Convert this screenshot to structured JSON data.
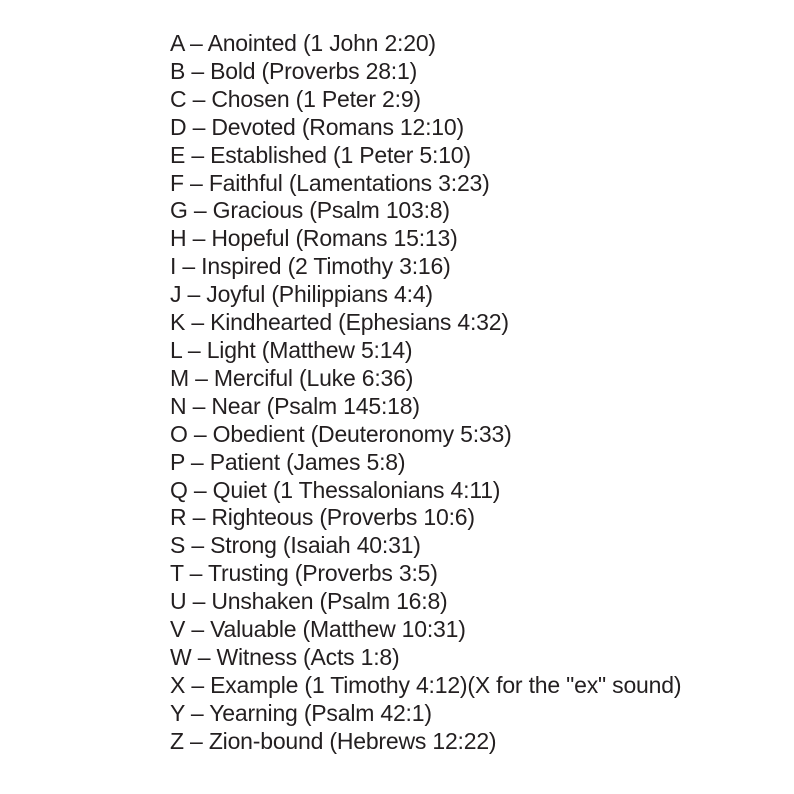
{
  "page": {
    "background_color": "#ffffff",
    "text_color": "#231f20"
  },
  "list": {
    "separator": "–",
    "items": [
      {
        "letter": "A",
        "word": "Anointed",
        "reference": "1 John 2:20",
        "note": ""
      },
      {
        "letter": "B",
        "word": "Bold",
        "reference": "Proverbs 28:1",
        "note": ""
      },
      {
        "letter": "C",
        "word": "Chosen",
        "reference": "1 Peter 2:9",
        "note": ""
      },
      {
        "letter": "D",
        "word": "Devoted",
        "reference": "Romans 12:10",
        "note": ""
      },
      {
        "letter": "E",
        "word": "Established",
        "reference": "1 Peter 5:10",
        "note": ""
      },
      {
        "letter": "F",
        "word": "Faithful",
        "reference": "Lamentations 3:23",
        "note": ""
      },
      {
        "letter": "G",
        "word": "Gracious",
        "reference": "Psalm 103:8",
        "note": ""
      },
      {
        "letter": "H",
        "word": "Hopeful",
        "reference": "Romans 15:13",
        "note": ""
      },
      {
        "letter": "I",
        "word": "Inspired",
        "reference": "2 Timothy 3:16",
        "note": ""
      },
      {
        "letter": "J",
        "word": "Joyful",
        "reference": "Philippians 4:4",
        "note": ""
      },
      {
        "letter": "K",
        "word": "Kindhearted",
        "reference": "Ephesians 4:32",
        "note": ""
      },
      {
        "letter": "L",
        "word": "Light",
        "reference": "Matthew 5:14",
        "note": ""
      },
      {
        "letter": "M",
        "word": "Merciful",
        "reference": "Luke 6:36",
        "note": ""
      },
      {
        "letter": "N",
        "word": "Near",
        "reference": "Psalm 145:18",
        "note": ""
      },
      {
        "letter": "O",
        "word": "Obedient",
        "reference": "Deuteronomy 5:33",
        "note": ""
      },
      {
        "letter": "P",
        "word": "Patient",
        "reference": "James 5:8",
        "note": ""
      },
      {
        "letter": "Q",
        "word": "Quiet",
        "reference": "1 Thessalonians 4:11",
        "note": ""
      },
      {
        "letter": "R",
        "word": "Righteous",
        "reference": "Proverbs 10:6",
        "note": ""
      },
      {
        "letter": "S",
        "word": "Strong",
        "reference": "Isaiah 40:31",
        "note": ""
      },
      {
        "letter": "T",
        "word": "Trusting",
        "reference": "Proverbs 3:5",
        "note": ""
      },
      {
        "letter": "U",
        "word": "Unshaken",
        "reference": "Psalm 16:8",
        "note": ""
      },
      {
        "letter": "V",
        "word": "Valuable",
        "reference": "Matthew 10:31",
        "note": ""
      },
      {
        "letter": "W",
        "word": "Witness",
        "reference": "Acts 1:8",
        "note": ""
      },
      {
        "letter": "X",
        "word": "Example",
        "reference": "1 Timothy 4:12",
        "note": "(X for the \"ex\" sound)"
      },
      {
        "letter": "Y",
        "word": "Yearning",
        "reference": "Psalm 42:1",
        "note": ""
      },
      {
        "letter": "Z",
        "word": "Zion-bound",
        "reference": "Hebrews 12:22",
        "note": ""
      }
    ]
  }
}
